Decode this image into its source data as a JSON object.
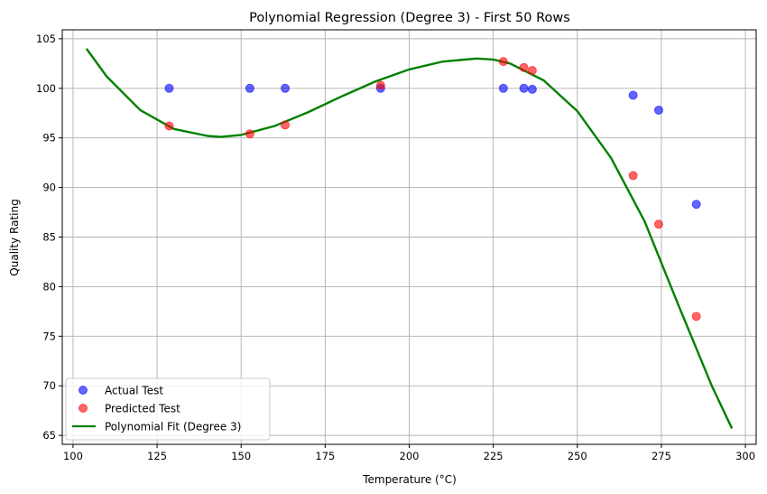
{
  "chart_data": {
    "type": "scatter",
    "title": "Polynomial Regression (Degree 3) - First 50 Rows",
    "xlabel": "Temperature (°C)",
    "ylabel": "Quality Rating",
    "xlim": [
      96.8,
      303.2
    ],
    "ylim": [
      64.1,
      105.9
    ],
    "xticks": [
      100,
      125,
      150,
      175,
      200,
      225,
      250,
      275,
      300
    ],
    "yticks": [
      65,
      70,
      75,
      80,
      85,
      90,
      95,
      100,
      105
    ],
    "grid": true,
    "legend_position": "lower-left",
    "series": [
      {
        "name": "Actual Test",
        "kind": "scatter",
        "color": "#0000ff",
        "x": [
          128.6,
          152.6,
          163.1,
          191.5,
          228.0,
          234.1,
          236.6,
          266.6,
          274.2,
          285.4
        ],
        "y": [
          100.0,
          100.0,
          100.0,
          100.0,
          100.0,
          100.0,
          99.9,
          99.3,
          97.8,
          88.3
        ]
      },
      {
        "name": "Predicted Test",
        "kind": "scatter",
        "color": "#ff0000",
        "x": [
          128.6,
          152.6,
          163.1,
          191.5,
          228.0,
          234.1,
          236.6,
          266.6,
          274.2,
          285.4
        ],
        "y": [
          96.2,
          95.4,
          96.3,
          100.3,
          102.7,
          102.1,
          101.8,
          91.2,
          86.3,
          77.0
        ]
      },
      {
        "name": "Polynomial Fit (Degree 3)",
        "kind": "line",
        "color": "#008000",
        "x": [
          104,
          110,
          120,
          130,
          140,
          144,
          150,
          160,
          170,
          180,
          190,
          200,
          210,
          220,
          225,
          230,
          240,
          250,
          260,
          270,
          280,
          290,
          296
        ],
        "y": [
          104.0,
          101.2,
          97.8,
          95.9,
          95.2,
          95.1,
          95.3,
          96.2,
          97.6,
          99.2,
          100.7,
          101.9,
          102.7,
          103.0,
          102.9,
          102.5,
          100.8,
          97.7,
          93.0,
          86.6,
          78.2,
          70.0,
          65.7
        ]
      }
    ]
  }
}
